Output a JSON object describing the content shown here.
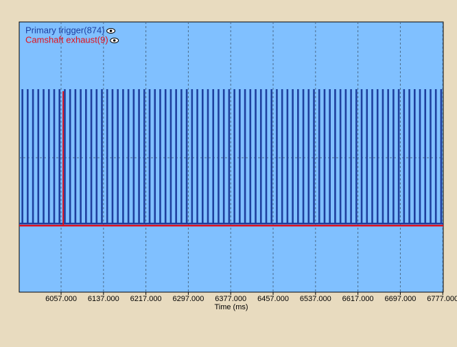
{
  "chart_data": {
    "type": "pulse",
    "x_label": "Time (ms)",
    "xlim": [
      5978,
      6778
    ],
    "xticks": [
      {
        "value": 6057,
        "label": "6057.000"
      },
      {
        "value": 6137,
        "label": "6137.000"
      },
      {
        "value": 6217,
        "label": "6217.000"
      },
      {
        "value": 6297,
        "label": "6297.000"
      },
      {
        "value": 6377,
        "label": "6377.000"
      },
      {
        "value": 6457,
        "label": "6457.000"
      },
      {
        "value": 6537,
        "label": "6537.000"
      },
      {
        "value": 6617,
        "label": "6617.000"
      },
      {
        "value": 6697,
        "label": "6697.000"
      },
      {
        "value": 6777,
        "label": "6777.000"
      }
    ],
    "grid": true,
    "legend": "top-left",
    "series": [
      {
        "name": "Primary trigger(874)",
        "color": "#1e3f9e",
        "x": [
          5984,
          5994,
          6004,
          6014,
          6024,
          6034,
          6044,
          6054,
          6064,
          6074,
          6084,
          6094,
          6104,
          6114,
          6124,
          6134,
          6144,
          6154,
          6164,
          6174,
          6184,
          6194,
          6204,
          6214,
          6224,
          6234,
          6244,
          6254,
          6264,
          6274,
          6284,
          6294,
          6304,
          6314,
          6324,
          6334,
          6344,
          6354,
          6364,
          6374,
          6384,
          6394,
          6404,
          6414,
          6424,
          6434,
          6444,
          6454,
          6464,
          6474,
          6484,
          6494,
          6504,
          6514,
          6524,
          6534,
          6544,
          6554,
          6564,
          6574,
          6584,
          6594,
          6604,
          6614,
          6624,
          6634,
          6644,
          6654,
          6664,
          6674,
          6684,
          6694,
          6704,
          6714,
          6724,
          6734,
          6744,
          6754,
          6764,
          6774
        ]
      },
      {
        "name": "Camshaft exhaust(9)",
        "color": "#e0101a",
        "x": [
          6061
        ]
      }
    ]
  }
}
